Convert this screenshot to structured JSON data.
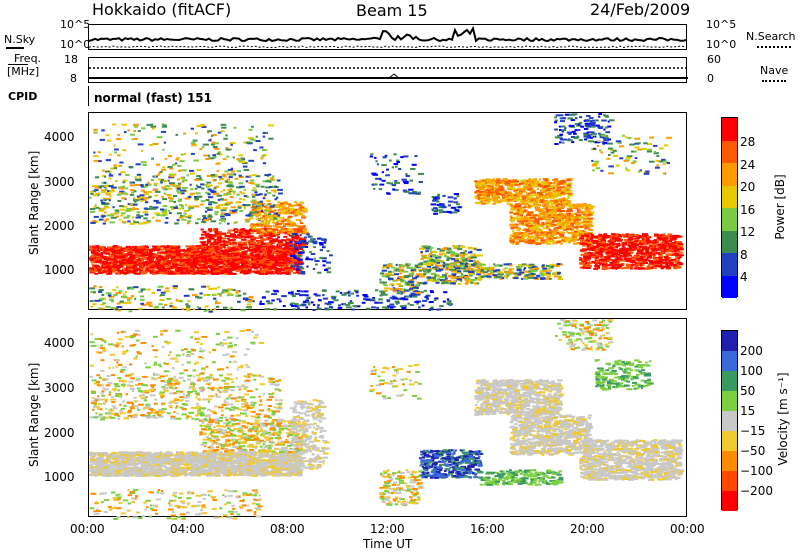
{
  "header": {
    "station": "Hokkaido (fitACF)",
    "beam": "Beam 15",
    "date": "24/Feb/2009"
  },
  "top_panels": {
    "nsky_label": "N.Sky",
    "nsky_ticks": [
      "10^5",
      "10^0"
    ],
    "nsearch_label": "N.Search",
    "nsearch_ticks": [
      "10^5",
      "10^0"
    ],
    "freq_label_1": "Freq.",
    "freq_label_2": "[MHz]",
    "freq_ticks": [
      "18",
      "8"
    ],
    "nave_label": "Nave",
    "nave_ticks": [
      "60",
      "0"
    ],
    "cpid_label": "CPID",
    "cpid_text": "normal (fast) 151"
  },
  "chart_data": [
    {
      "type": "heatmap",
      "name": "power",
      "ylabel": "Slant Range [km]",
      "y_ticks": [
        "1000",
        "2000",
        "3000",
        "4000"
      ],
      "ylim": [
        200,
        4600
      ],
      "x_ticks": [
        "00:00",
        "04:00",
        "08:00",
        "12:00",
        "16:00",
        "20:00",
        "00:00"
      ],
      "xlim_hours": [
        0,
        24
      ],
      "colorbar_label": "Power [dB]",
      "colorbar_ticks": [
        "28",
        "24",
        "20",
        "16",
        "12",
        "8",
        "4"
      ],
      "colorbar_colors": [
        "#ff0000",
        "#ff5a00",
        "#ff9a00",
        "#e6c800",
        "#7ac943",
        "#3c8c50",
        "#2040c0",
        "#0000ff"
      ]
    },
    {
      "type": "heatmap",
      "name": "velocity",
      "ylabel": "Slant Range [km]",
      "y_ticks": [
        "1000",
        "2000",
        "3000",
        "4000"
      ],
      "ylim": [
        200,
        4600
      ],
      "x_ticks": [
        "00:00",
        "04:00",
        "08:00",
        "12:00",
        "16:00",
        "20:00",
        "00:00"
      ],
      "xlim_hours": [
        0,
        24
      ],
      "xlabel": "Time UT",
      "colorbar_label": "Velocity [m s⁻¹]",
      "colorbar_ticks": [
        "200",
        "100",
        "50",
        "15",
        "−15",
        "−50",
        "−100",
        "−200"
      ],
      "colorbar_colors": [
        "#2020b0",
        "#3a6ad8",
        "#3a9a60",
        "#7cd040",
        "#c8c8c8",
        "#f0c830",
        "#ff8c00",
        "#ff4800",
        "#ff0000"
      ]
    }
  ]
}
